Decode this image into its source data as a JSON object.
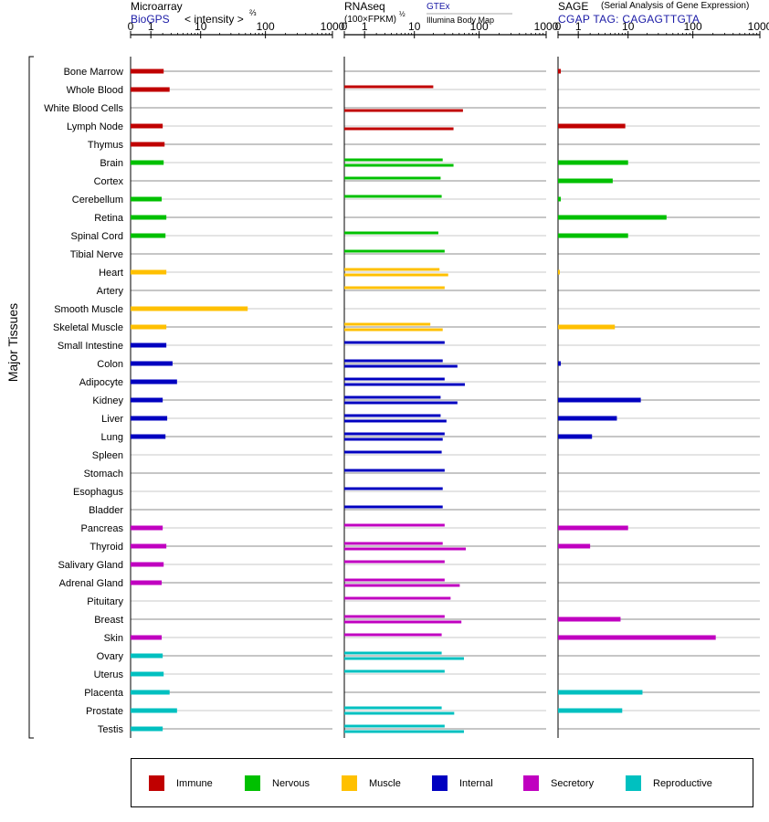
{
  "panels": {
    "microarray": {
      "title": "Microarray",
      "source": "BioGPS",
      "measure": "< intensity >",
      "measure_exp": "⅔",
      "ticks": [
        "0",
        "1",
        "10",
        "100",
        "1000"
      ]
    },
    "rnaseq": {
      "title": "RNAseq",
      "measure": "(100×FPKM)",
      "measure_exp": "½",
      "source_top": "GTEx",
      "source_bottom": "Illumina Body Map",
      "ticks": [
        "0",
        "1",
        "10",
        "100",
        "1000"
      ]
    },
    "sage": {
      "title": "SAGE",
      "subtitle": "(Serial Analysis of Gene Expression)",
      "tag": "CGAP TAG: CAGAGTTGTA",
      "ticks": [
        "0",
        "1",
        "10",
        "100",
        "1000"
      ]
    }
  },
  "y_group_label": "Major Tissues",
  "legend": [
    {
      "label": "Immune",
      "color": "#c00000"
    },
    {
      "label": "Nervous",
      "color": "#00c000"
    },
    {
      "label": "Muscle",
      "color": "#ffc000"
    },
    {
      "label": "Internal",
      "color": "#0000c0"
    },
    {
      "label": "Secretory",
      "color": "#c000c0"
    },
    {
      "label": "Reproductive",
      "color": "#00c0c0"
    }
  ],
  "chart_data": [
    {
      "type": "bar",
      "title": "Microarray",
      "xlabel": "< intensity >⅔",
      "x_scale": "log",
      "xlim": [
        0,
        1000
      ],
      "categories": [
        "Bone Marrow",
        "Whole Blood",
        "White Blood Cells",
        "Lymph Node",
        "Thymus",
        "Brain",
        "Cortex",
        "Cerebellum",
        "Retina",
        "Spinal Cord",
        "Tibial Nerve",
        "Heart",
        "Artery",
        "Smooth Muscle",
        "Skeletal Muscle",
        "Small Intestine",
        "Colon",
        "Adipocyte",
        "Kidney",
        "Liver",
        "Lung",
        "Spleen",
        "Stomach",
        "Esophagus",
        "Bladder",
        "Pancreas",
        "Thyroid",
        "Salivary Gland",
        "Adrenal Gland",
        "Pituitary",
        "Breast",
        "Skin",
        "Ovary",
        "Uterus",
        "Placenta",
        "Prostate",
        "Testis"
      ],
      "groups": [
        "Immune",
        "Immune",
        "Immune",
        "Immune",
        "Immune",
        "Nervous",
        "Nervous",
        "Nervous",
        "Nervous",
        "Nervous",
        "Nervous",
        "Muscle",
        "Muscle",
        "Muscle",
        "Muscle",
        "Internal",
        "Internal",
        "Internal",
        "Internal",
        "Internal",
        "Internal",
        "Internal",
        "Internal",
        "Internal",
        "Internal",
        "Secretory",
        "Secretory",
        "Secretory",
        "Secretory",
        "Secretory",
        "Secretory",
        "Secretory",
        "Reproductive",
        "Reproductive",
        "Reproductive",
        "Reproductive",
        "Reproductive"
      ],
      "values": [
        2.1,
        2.8,
        null,
        2.0,
        2.2,
        2.1,
        null,
        1.9,
        2.4,
        2.3,
        null,
        2.4,
        null,
        54,
        2.4,
        2.4,
        3.2,
        3.9,
        2.0,
        2.5,
        2.3,
        null,
        null,
        null,
        null,
        2.0,
        2.4,
        2.1,
        1.9,
        null,
        null,
        1.9,
        2.0,
        2.1,
        2.8,
        3.9,
        2.0
      ]
    },
    {
      "type": "bar",
      "title": "RNAseq",
      "xlabel": "(100×FPKM)½",
      "x_scale": "log",
      "xlim": [
        0,
        1000
      ],
      "categories": [
        "Bone Marrow",
        "Whole Blood",
        "White Blood Cells",
        "Lymph Node",
        "Thymus",
        "Brain",
        "Cortex",
        "Cerebellum",
        "Retina",
        "Spinal Cord",
        "Tibial Nerve",
        "Heart",
        "Artery",
        "Smooth Muscle",
        "Skeletal Muscle",
        "Small Intestine",
        "Colon",
        "Adipocyte",
        "Kidney",
        "Liver",
        "Lung",
        "Spleen",
        "Stomach",
        "Esophagus",
        "Bladder",
        "Pancreas",
        "Thyroid",
        "Salivary Gland",
        "Adrenal Gland",
        "Pituitary",
        "Breast",
        "Skin",
        "Ovary",
        "Uterus",
        "Placenta",
        "Prostate",
        "Testis"
      ],
      "series": [
        {
          "name": "GTEx",
          "values": [
            null,
            20,
            null,
            null,
            null,
            28,
            26,
            27,
            null,
            24,
            30,
            25,
            30,
            null,
            18,
            30,
            28,
            30,
            26,
            26,
            30,
            27,
            30,
            28,
            28,
            30,
            28,
            30,
            30,
            37,
            30,
            27,
            27,
            30,
            null,
            27,
            30
          ]
        },
        {
          "name": "Illumina Body Map",
          "values": [
            null,
            null,
            57,
            41,
            null,
            41,
            null,
            null,
            null,
            null,
            null,
            34,
            null,
            null,
            28,
            null,
            47,
            61,
            47,
            32,
            28,
            null,
            null,
            null,
            null,
            null,
            63,
            null,
            51,
            null,
            54,
            null,
            59,
            null,
            null,
            42,
            59
          ]
        }
      ]
    },
    {
      "type": "bar",
      "title": "SAGE",
      "xlabel": "CGAP TAG: CAGAGTTGTA",
      "x_scale": "log",
      "xlim": [
        0,
        1000
      ],
      "categories": [
        "Bone Marrow",
        "Whole Blood",
        "White Blood Cells",
        "Lymph Node",
        "Thymus",
        "Brain",
        "Cortex",
        "Cerebellum",
        "Retina",
        "Spinal Cord",
        "Tibial Nerve",
        "Heart",
        "Artery",
        "Smooth Muscle",
        "Skeletal Muscle",
        "Small Intestine",
        "Colon",
        "Adipocyte",
        "Kidney",
        "Liver",
        "Lung",
        "Spleen",
        "Stomach",
        "Esophagus",
        "Bladder",
        "Pancreas",
        "Thyroid",
        "Salivary Gland",
        "Adrenal Gland",
        "Pituitary",
        "Breast",
        "Skin",
        "Ovary",
        "Uterus",
        "Placenta",
        "Prostate",
        "Testis"
      ],
      "values": [
        0.1,
        null,
        null,
        9,
        null,
        10,
        5.5,
        0.1,
        40,
        10,
        null,
        0.05,
        null,
        null,
        6,
        null,
        0.1,
        null,
        16,
        6.5,
        2.2,
        null,
        null,
        null,
        null,
        10,
        2.0,
        null,
        null,
        null,
        7.5,
        220,
        null,
        null,
        17,
        8,
        null
      ]
    }
  ]
}
